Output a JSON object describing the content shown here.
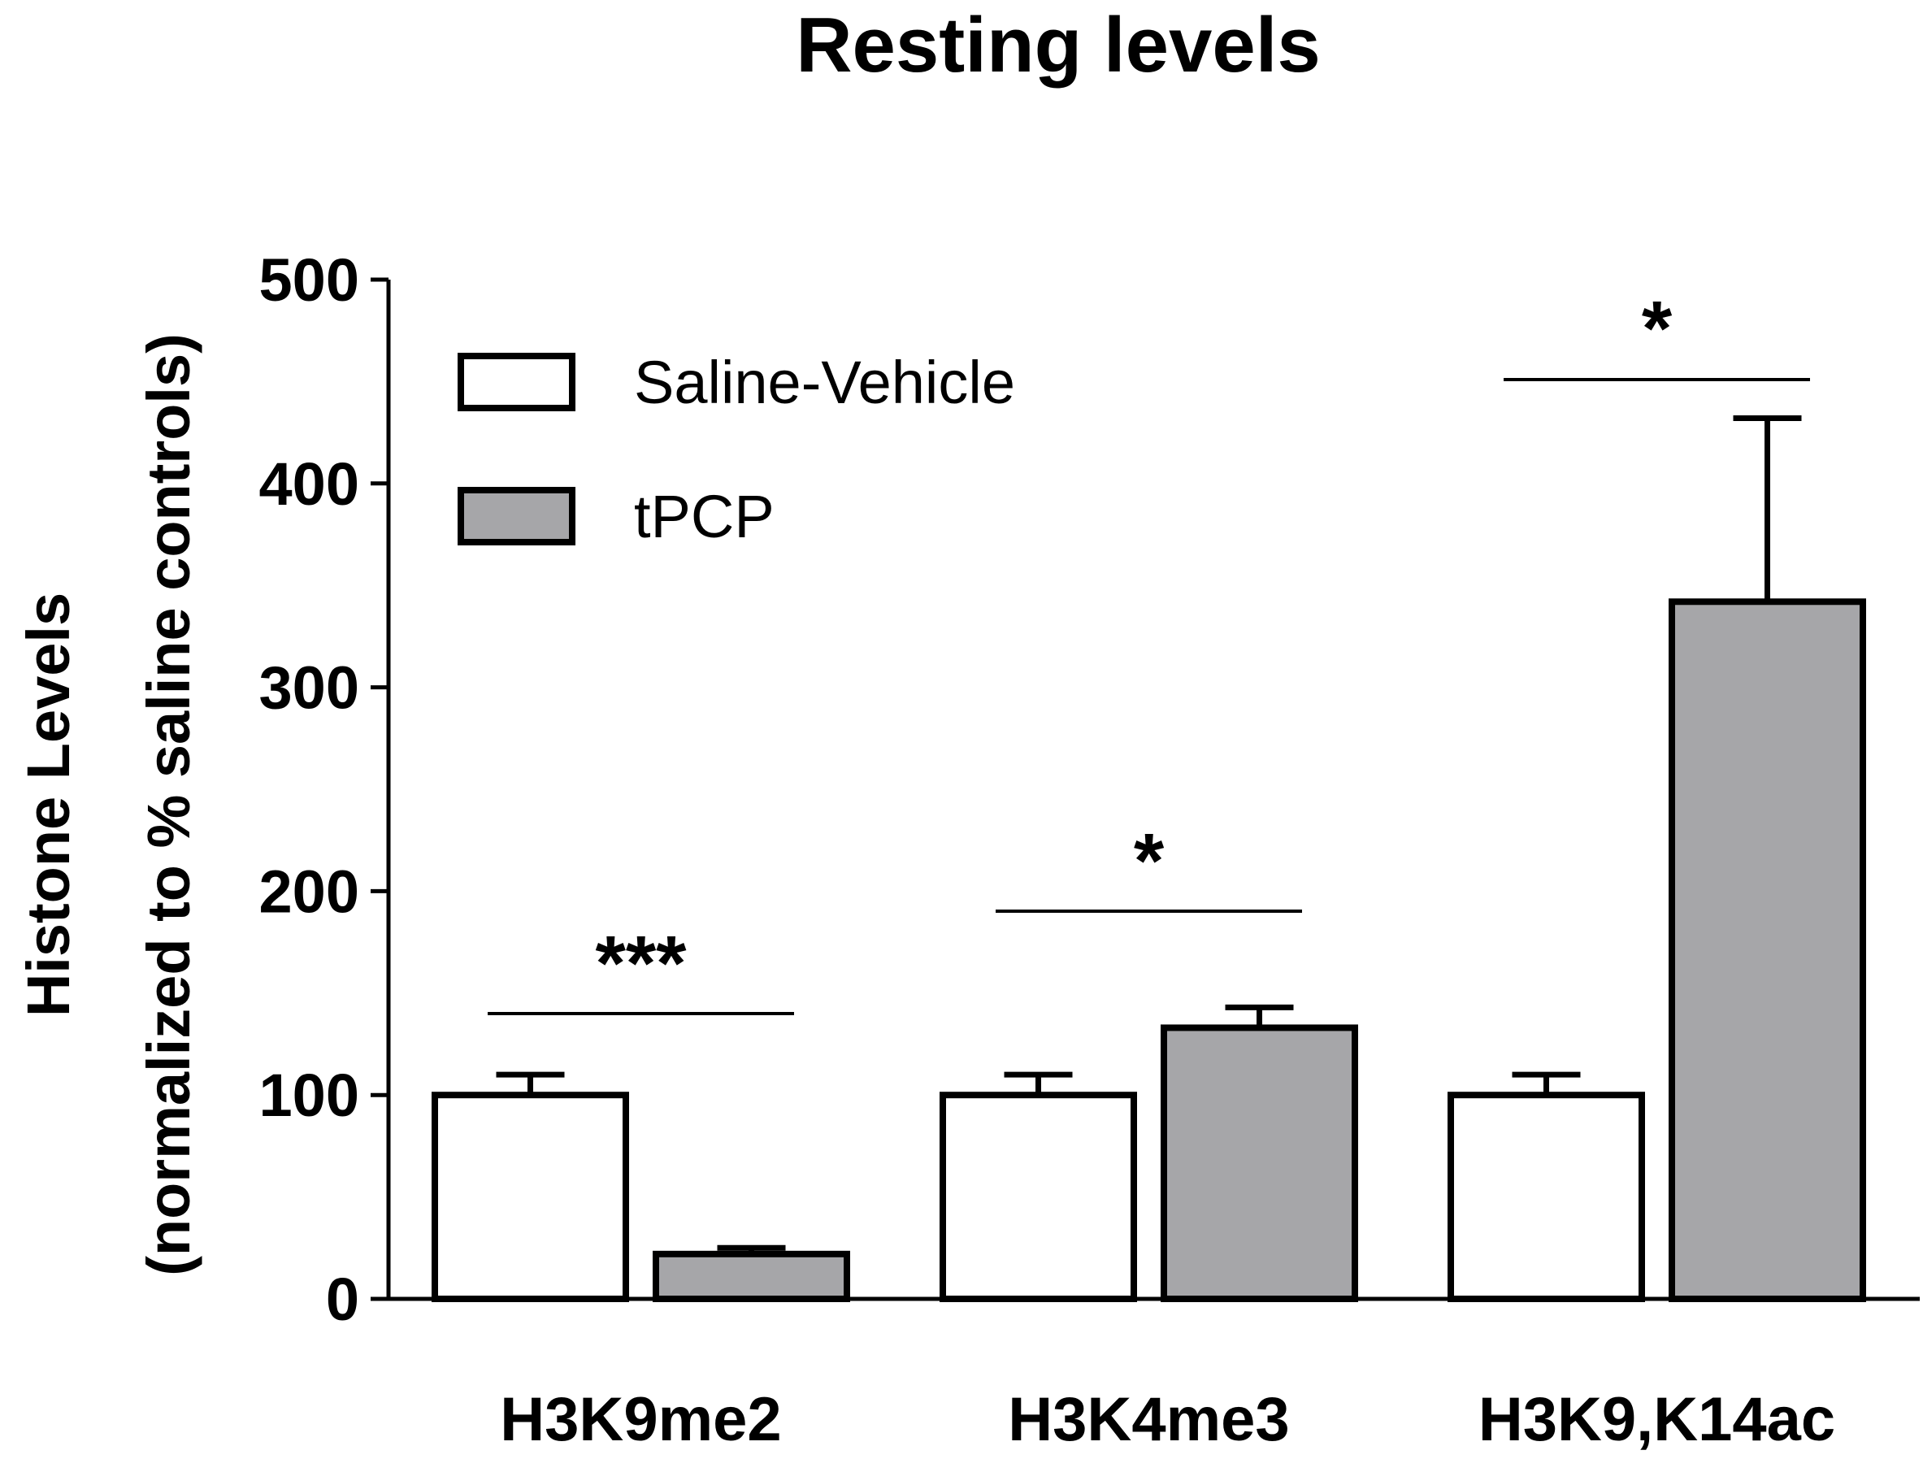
{
  "chart_data": {
    "type": "bar",
    "title": "Resting levels",
    "ylabel_line1": "Histone Levels",
    "ylabel_line2": "(normalized to % saline controls)",
    "xlabel": "",
    "ylim": [
      0,
      500
    ],
    "yticks": [
      0,
      100,
      200,
      300,
      400,
      500
    ],
    "categories": [
      "H3K9me2",
      "H3K4me3",
      "H3K9,K14ac"
    ],
    "series": [
      {
        "name": "Saline-Vehicle",
        "color": "#ffffff",
        "values": [
          100,
          100,
          100
        ],
        "errors": [
          10,
          10,
          10
        ]
      },
      {
        "name": "tPCP",
        "color": "#a6a6a9",
        "values": [
          22,
          133,
          342
        ],
        "errors": [
          3,
          10,
          90
        ]
      }
    ],
    "significance": [
      "***",
      "*",
      "*"
    ],
    "legend_position": "top-left",
    "grid": false
  }
}
